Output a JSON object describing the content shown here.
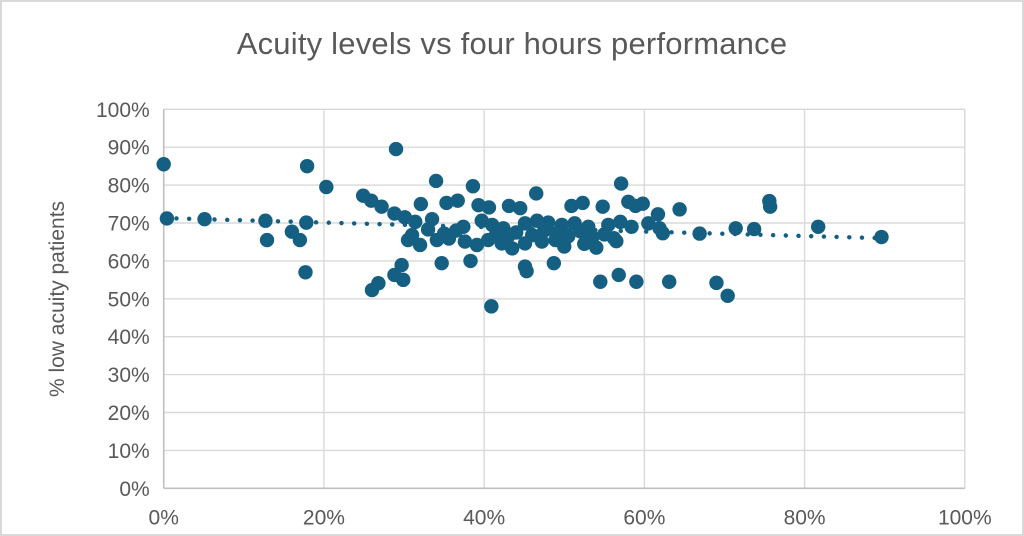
{
  "window": {
    "background_color": "#ffffff",
    "border_color": "#d9d9d9"
  },
  "chart": {
    "title": "Acuity levels vs four hours performance",
    "title_color": "#595959",
    "y_axis_title": "% low acuity patients"
  },
  "chart_data": {
    "type": "scatter",
    "title": "Acuity levels vs four hours performance",
    "xlabel": "",
    "ylabel": "% low acuity patients",
    "xlim": [
      0,
      100
    ],
    "ylim": [
      0,
      100
    ],
    "x_ticks": [
      "0%",
      "20%",
      "40%",
      "60%",
      "80%",
      "100%"
    ],
    "x_tick_values": [
      0,
      20,
      40,
      60,
      80,
      100
    ],
    "y_ticks": [
      "0%",
      "10%",
      "20%",
      "30%",
      "40%",
      "50%",
      "60%",
      "70%",
      "80%",
      "90%",
      "100%"
    ],
    "y_tick_values": [
      0,
      10,
      20,
      30,
      40,
      50,
      60,
      70,
      80,
      90,
      100
    ],
    "grid": true,
    "grid_color": "#d9d9d9",
    "axis_line_color": "#bfbfbf",
    "label_color": "#595959",
    "marker_color": "#156082",
    "marker_radius": 7.2,
    "points": [
      [
        0.0,
        85.5
      ],
      [
        0.4,
        71.2
      ],
      [
        5.1,
        71.0
      ],
      [
        12.7,
        70.6
      ],
      [
        12.9,
        65.5
      ],
      [
        16.0,
        67.7
      ],
      [
        17.0,
        65.5
      ],
      [
        17.7,
        57.0
      ],
      [
        17.9,
        85.0
      ],
      [
        17.8,
        70.1
      ],
      [
        20.3,
        79.5
      ],
      [
        24.9,
        77.2
      ],
      [
        25.9,
        75.9
      ],
      [
        27.2,
        74.3
      ],
      [
        26.0,
        52.3
      ],
      [
        26.8,
        54.1
      ],
      [
        28.8,
        56.3
      ],
      [
        29.0,
        89.5
      ],
      [
        28.8,
        72.5
      ],
      [
        29.9,
        55.0
      ],
      [
        29.7,
        58.9
      ],
      [
        34.0,
        81.1
      ],
      [
        38.6,
        79.7
      ],
      [
        46.5,
        77.8
      ],
      [
        57.1,
        80.4
      ],
      [
        32.1,
        75.0
      ],
      [
        35.3,
        75.3
      ],
      [
        36.7,
        75.9
      ],
      [
        39.3,
        74.7
      ],
      [
        40.6,
        74.1
      ],
      [
        43.1,
        74.5
      ],
      [
        44.5,
        73.9
      ],
      [
        50.9,
        74.5
      ],
      [
        52.3,
        75.3
      ],
      [
        54.8,
        74.3
      ],
      [
        58.0,
        75.6
      ],
      [
        58.9,
        74.5
      ],
      [
        59.8,
        75.1
      ],
      [
        30.1,
        71.5
      ],
      [
        31.4,
        70.3
      ],
      [
        33.5,
        71.0
      ],
      [
        37.4,
        69.0
      ],
      [
        39.7,
        70.6
      ],
      [
        41.0,
        69.5
      ],
      [
        42.4,
        68.6
      ],
      [
        45.1,
        69.9
      ],
      [
        46.6,
        70.6
      ],
      [
        48.0,
        70.1
      ],
      [
        49.7,
        69.5
      ],
      [
        51.3,
        69.9
      ],
      [
        53.0,
        69.0
      ],
      [
        55.5,
        69.5
      ],
      [
        57.0,
        70.3
      ],
      [
        58.4,
        69.0
      ],
      [
        60.5,
        69.9
      ],
      [
        30.5,
        65.5
      ],
      [
        32.0,
        64.2
      ],
      [
        34.1,
        65.5
      ],
      [
        35.6,
        65.9
      ],
      [
        37.6,
        65.1
      ],
      [
        39.1,
        64.2
      ],
      [
        40.5,
        65.5
      ],
      [
        42.2,
        64.6
      ],
      [
        43.5,
        63.3
      ],
      [
        45.1,
        64.6
      ],
      [
        47.2,
        65.1
      ],
      [
        48.9,
        65.5
      ],
      [
        31.0,
        66.8
      ],
      [
        33.0,
        68.3
      ],
      [
        35.0,
        67.2
      ],
      [
        36.5,
        68.0
      ],
      [
        41.5,
        67.0
      ],
      [
        43.0,
        66.5
      ],
      [
        44.0,
        67.5
      ],
      [
        46.0,
        66.8
      ],
      [
        47.5,
        68.0
      ],
      [
        49.0,
        67.2
      ],
      [
        50.5,
        66.5
      ],
      [
        52.0,
        67.8
      ],
      [
        53.5,
        66.2
      ],
      [
        55.0,
        67.0
      ],
      [
        56.2,
        66.0
      ],
      [
        56.5,
        65.2
      ],
      [
        50.0,
        63.8
      ],
      [
        52.5,
        64.5
      ],
      [
        54.0,
        63.5
      ],
      [
        34.7,
        59.4
      ],
      [
        38.3,
        60.0
      ],
      [
        45.1,
        58.5
      ],
      [
        45.3,
        57.3
      ],
      [
        48.7,
        59.4
      ],
      [
        54.5,
        54.5
      ],
      [
        56.8,
        56.3
      ],
      [
        59.0,
        54.5
      ],
      [
        40.9,
        48.0
      ],
      [
        61.7,
        72.3
      ],
      [
        61.9,
        68.6
      ],
      [
        62.3,
        67.3
      ],
      [
        64.4,
        73.6
      ],
      [
        66.9,
        67.2
      ],
      [
        71.4,
        68.6
      ],
      [
        73.7,
        68.4
      ],
      [
        75.6,
        75.8
      ],
      [
        75.7,
        74.3
      ],
      [
        81.7,
        69.0
      ],
      [
        89.6,
        66.3
      ],
      [
        63.1,
        54.5
      ],
      [
        69.0,
        54.2
      ],
      [
        70.4,
        50.8
      ]
    ],
    "trendline": {
      "style": "dotted",
      "color": "#156082",
      "x1": 0,
      "y1": 71.3,
      "x2": 89.5,
      "y2": 66.0
    },
    "legend": null
  }
}
